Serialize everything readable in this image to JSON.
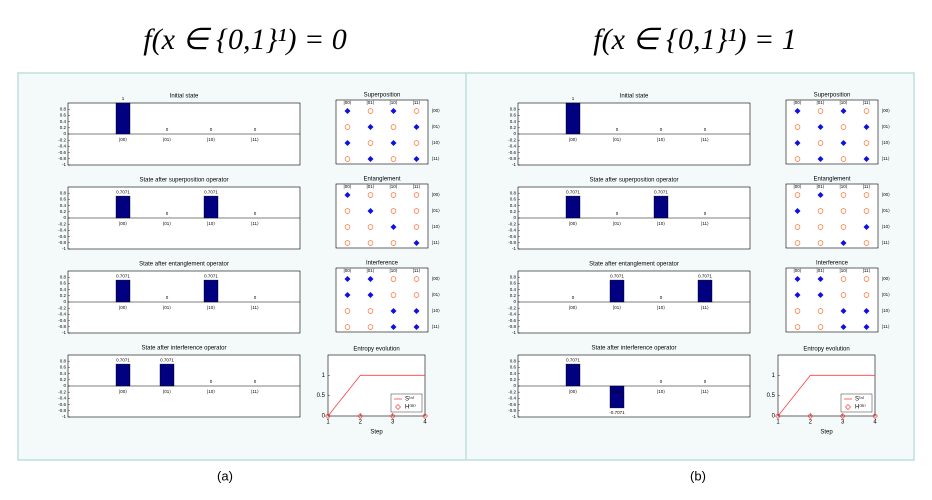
{
  "headings": [
    "f(x ∈ {0,1}¹) = 0",
    "f(x ∈ {0,1}¹) = 1"
  ],
  "captions": [
    "(a)",
    "(b)"
  ],
  "chart_data": [
    {
      "type": "bar",
      "title": "Initial state",
      "categories": [
        "|00⟩",
        "|01⟩",
        "|10⟩",
        "|11⟩"
      ],
      "values": [
        1,
        0,
        0,
        0
      ],
      "color": "#000080",
      "ylim": [
        -1,
        1
      ],
      "yticks": [
        0.8,
        0.6,
        0.4,
        0.2,
        0,
        -0.2,
        -0.4,
        -0.6,
        -0.8,
        -1
      ]
    },
    {
      "type": "matrix",
      "title": "Superposition",
      "labels": [
        "|00⟩",
        "|01⟩",
        "|10⟩",
        "|11⟩"
      ],
      "values": [
        [
          1,
          0,
          1,
          0
        ],
        [
          0,
          1,
          0,
          1
        ],
        [
          1,
          0,
          1,
          0
        ],
        [
          0,
          1,
          0,
          1
        ]
      ],
      "colors": [
        "#ff6a2a",
        "#1010e0"
      ]
    },
    {
      "type": "bar",
      "title": "State after superposition operator",
      "categories": [
        "|00⟩",
        "|01⟩",
        "|10⟩",
        "|11⟩"
      ],
      "values": [
        0.7071,
        0,
        0.7071,
        0
      ],
      "color": "#000080",
      "ylim": [
        -1,
        1
      ],
      "yticks": [
        0.8,
        0.6,
        0.4,
        0.2,
        0,
        -0.2,
        -0.4,
        -0.6,
        -0.8,
        -1
      ]
    },
    {
      "type": "matrix",
      "title": "Entanglement",
      "labels": [
        "|00⟩",
        "|01⟩",
        "|10⟩",
        "|11⟩"
      ],
      "values": [
        [
          1,
          0,
          0,
          0
        ],
        [
          0,
          1,
          0,
          0
        ],
        [
          0,
          0,
          1,
          0
        ],
        [
          0,
          0,
          0,
          1
        ]
      ],
      "colors": [
        "#ff6a2a",
        "#1010e0"
      ]
    },
    {
      "type": "bar",
      "title": "State after entanglement operator",
      "categories": [
        "|00⟩",
        "|01⟩",
        "|10⟩",
        "|11⟩"
      ],
      "values": [
        0.7071,
        0,
        0.7071,
        0
      ],
      "color": "#000080",
      "ylim": [
        -1,
        1
      ],
      "yticks": [
        0.8,
        0.6,
        0.4,
        0.2,
        0,
        -0.2,
        -0.4,
        -0.6,
        -0.8,
        -1
      ]
    },
    {
      "type": "matrix",
      "title": "Interference",
      "labels": [
        "|00⟩",
        "|01⟩",
        "|10⟩",
        "|11⟩"
      ],
      "values": [
        [
          1,
          1,
          0,
          0
        ],
        [
          1,
          1,
          0,
          0
        ],
        [
          0,
          0,
          1,
          1
        ],
        [
          0,
          0,
          1,
          1
        ]
      ],
      "colors": [
        "#ff6a2a",
        "#1010e0"
      ]
    },
    {
      "type": "bar",
      "title": "State after interference operator",
      "categories": [
        "|00⟩",
        "|01⟩",
        "|10⟩",
        "|11⟩"
      ],
      "values": [
        0.7071,
        0.7071,
        0,
        0
      ],
      "color": "#000080",
      "ylim": [
        -1,
        1
      ],
      "yticks": [
        0.8,
        0.6,
        0.4,
        0.2,
        0,
        -0.2,
        -0.4,
        -0.6,
        -0.8,
        -1
      ]
    },
    {
      "type": "line",
      "title": "Entropy evolution",
      "x_label": "Step",
      "x": [
        1,
        2,
        3,
        4
      ],
      "xlim": [
        1,
        4
      ],
      "xticks": [
        1,
        2,
        3,
        4
      ],
      "ylim": [
        0,
        1.5
      ],
      "yticks": [
        0,
        0.5,
        1
      ],
      "series": [
        {
          "name": "S⁽ⁿ⁾",
          "color": "#ff4040",
          "marker": "none",
          "values": [
            0,
            1,
            1,
            1
          ]
        },
        {
          "name": "H⁽ᵐ⁾",
          "color": "#ff4040",
          "marker": "diamond",
          "values": [
            0,
            0,
            0,
            0
          ]
        }
      ]
    },
    {
      "type": "bar",
      "title": "Initial state",
      "categories": [
        "|00⟩",
        "|01⟩",
        "|10⟩",
        "|11⟩"
      ],
      "values": [
        1,
        0,
        0,
        0
      ],
      "color": "#000080",
      "ylim": [
        -1,
        1
      ],
      "yticks": [
        0.8,
        0.6,
        0.4,
        0.2,
        0,
        -0.2,
        -0.4,
        -0.6,
        -0.8,
        -1
      ]
    },
    {
      "type": "matrix",
      "title": "Superposition",
      "labels": [
        "|00⟩",
        "|01⟩",
        "|10⟩",
        "|11⟩"
      ],
      "values": [
        [
          1,
          0,
          1,
          0
        ],
        [
          0,
          1,
          0,
          1
        ],
        [
          1,
          0,
          1,
          0
        ],
        [
          0,
          1,
          0,
          1
        ]
      ],
      "colors": [
        "#ff6a2a",
        "#1010e0"
      ]
    },
    {
      "type": "bar",
      "title": "State after superposition operator",
      "categories": [
        "|00⟩",
        "|01⟩",
        "|10⟩",
        "|11⟩"
      ],
      "values": [
        0.7071,
        0,
        0.7071,
        0
      ],
      "color": "#000080",
      "ylim": [
        -1,
        1
      ],
      "yticks": [
        0.8,
        0.6,
        0.4,
        0.2,
        0,
        -0.2,
        -0.4,
        -0.6,
        -0.8,
        -1
      ]
    },
    {
      "type": "matrix",
      "title": "Entanglement",
      "labels": [
        "|00⟩",
        "|01⟩",
        "|10⟩",
        "|11⟩"
      ],
      "values": [
        [
          0,
          1,
          0,
          0
        ],
        [
          1,
          0,
          0,
          0
        ],
        [
          0,
          0,
          0,
          1
        ],
        [
          0,
          0,
          1,
          0
        ]
      ],
      "colors": [
        "#ff6a2a",
        "#1010e0"
      ]
    },
    {
      "type": "bar",
      "title": "State after entanglement operator",
      "categories": [
        "|00⟩",
        "|01⟩",
        "|10⟩",
        "|11⟩"
      ],
      "values": [
        0,
        0.7071,
        0,
        0.7071
      ],
      "color": "#000080",
      "ylim": [
        -1,
        1
      ],
      "yticks": [
        0.8,
        0.6,
        0.4,
        0.2,
        0,
        -0.2,
        -0.4,
        -0.6,
        -0.8,
        -1
      ]
    },
    {
      "type": "matrix",
      "title": "Interference",
      "labels": [
        "|00⟩",
        "|01⟩",
        "|10⟩",
        "|11⟩"
      ],
      "values": [
        [
          1,
          1,
          0,
          0
        ],
        [
          1,
          1,
          0,
          0
        ],
        [
          0,
          0,
          1,
          1
        ],
        [
          0,
          0,
          1,
          1
        ]
      ],
      "colors": [
        "#ff6a2a",
        "#1010e0"
      ]
    },
    {
      "type": "bar",
      "title": "State after interference operator",
      "categories": [
        "|00⟩",
        "|01⟩",
        "|10⟩",
        "|11⟩"
      ],
      "values": [
        0.7071,
        -0.7071,
        0,
        0
      ],
      "color": "#000080",
      "ylim": [
        -1,
        1
      ],
      "yticks": [
        0.8,
        0.6,
        0.4,
        0.2,
        0,
        -0.2,
        -0.4,
        -0.6,
        -0.8,
        -1
      ]
    },
    {
      "type": "line",
      "title": "Entropy evolution",
      "x_label": "Step",
      "x": [
        1,
        2,
        3,
        4
      ],
      "xlim": [
        1,
        4
      ],
      "xticks": [
        1,
        2,
        3,
        4
      ],
      "ylim": [
        0,
        1.5
      ],
      "yticks": [
        0,
        0.5,
        1
      ],
      "series": [
        {
          "name": "S⁽ⁿ⁾",
          "color": "#ff4040",
          "marker": "none",
          "values": [
            0,
            1,
            1,
            1
          ]
        },
        {
          "name": "H⁽ᵐ⁾",
          "color": "#ff4040",
          "marker": "diamond",
          "values": [
            0,
            0,
            0,
            0
          ]
        }
      ]
    }
  ]
}
